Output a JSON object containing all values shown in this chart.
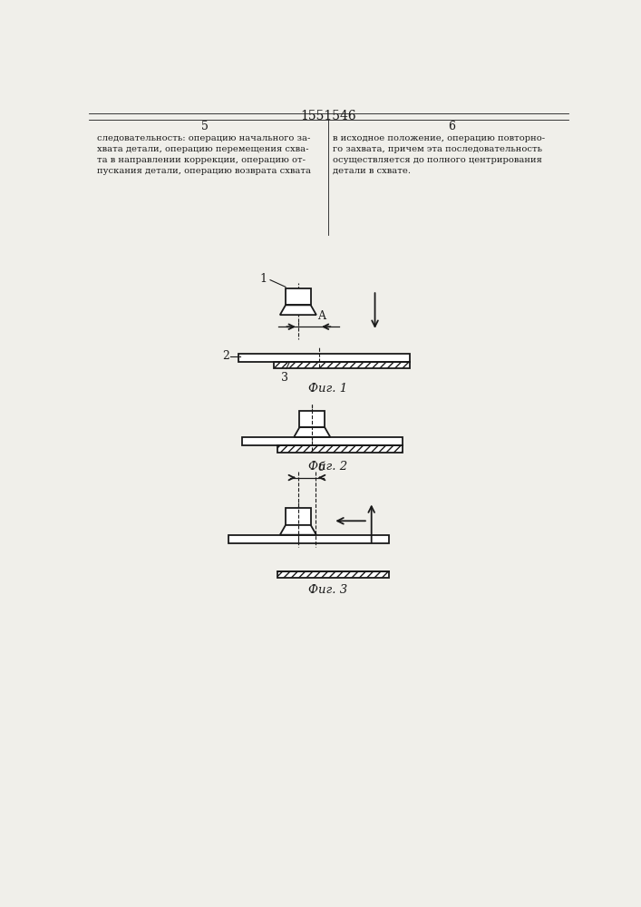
{
  "title": "1551546",
  "page_left": "5",
  "page_right": "6",
  "text_left": "следовательность: операцию начального за-\nхвата детали, операцию перемещения схва-\nта в направлении коррекции, операцию от-\nпускания детали, операцию возврата схвата",
  "text_right": "в исходное положение, операцию повторно-\nго захвата, причем эта последовательность\nосуществляется до полного центрирования\nдетали в схвате.",
  "fig1_label": "Фиг. 1",
  "fig2_label": "Фиг. 2",
  "fig3_label": "Фиг. 3",
  "label_A": "A",
  "label_B": "б",
  "label_1": "1",
  "label_2": "2",
  "label_3": "3",
  "line_color": "#1a1a1a",
  "bg_color": "#f0efea"
}
